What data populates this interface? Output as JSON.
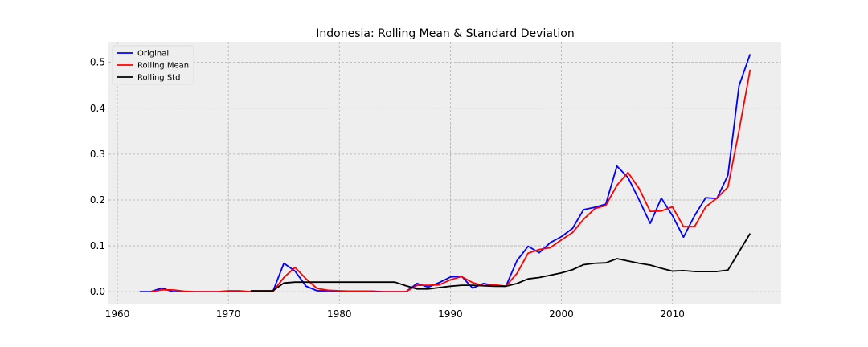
{
  "chart_data": {
    "type": "line",
    "title": "Indonesia: Rolling Mean & Standard Deviation",
    "xlabel": "",
    "ylabel": "",
    "xlim": [
      1959.2,
      2019.8
    ],
    "ylim": [
      -0.026,
      0.545
    ],
    "xticks": [
      1960,
      1970,
      1980,
      1990,
      2000,
      2010
    ],
    "yticks": [
      0.0,
      0.1,
      0.2,
      0.3,
      0.4,
      0.5
    ],
    "grid": true,
    "legend_position": "top-left",
    "series": [
      {
        "name": "Original",
        "color": "#0000ff",
        "x": [
          1962,
          1963,
          1964,
          1965,
          1966,
          1967,
          1968,
          1969,
          1970,
          1971,
          1972,
          1973,
          1974,
          1975,
          1976,
          1977,
          1978,
          1979,
          1980,
          1981,
          1982,
          1983,
          1984,
          1985,
          1986,
          1987,
          1988,
          1989,
          1990,
          1991,
          1992,
          1993,
          1994,
          1995,
          1996,
          1997,
          1998,
          1999,
          2000,
          2001,
          2002,
          2003,
          2004,
          2005,
          2006,
          2007,
          2008,
          2009,
          2010,
          2011,
          2012,
          2013,
          2014,
          2015,
          2016,
          2017
        ],
        "y": [
          0.0,
          0.0,
          0.008,
          0.0,
          0.0,
          0.0,
          0.0,
          0.0,
          0.0,
          0.0,
          0.0,
          0.0,
          0.0,
          0.062,
          0.045,
          0.012,
          0.002,
          0.002,
          0.001,
          0.001,
          0.001,
          0.001,
          0.0,
          0.0,
          0.0,
          0.018,
          0.01,
          0.02,
          0.032,
          0.034,
          0.008,
          0.018,
          0.013,
          0.012,
          0.068,
          0.099,
          0.085,
          0.107,
          0.12,
          0.138,
          0.179,
          0.184,
          0.191,
          0.274,
          0.249,
          0.2,
          0.149,
          0.204,
          0.166,
          0.119,
          0.166,
          0.205,
          0.203,
          0.254,
          0.449,
          0.518
        ]
      },
      {
        "name": "Rolling Mean",
        "color": "#ff0000",
        "x": [
          1963,
          1964,
          1965,
          1966,
          1967,
          1968,
          1969,
          1970,
          1971,
          1972,
          1973,
          1974,
          1975,
          1976,
          1977,
          1978,
          1979,
          1980,
          1981,
          1982,
          1983,
          1984,
          1985,
          1986,
          1987,
          1988,
          1989,
          1990,
          1991,
          1992,
          1993,
          1994,
          1995,
          1996,
          1997,
          1998,
          1999,
          2000,
          2001,
          2002,
          2003,
          2004,
          2005,
          2006,
          2007,
          2008,
          2009,
          2010,
          2011,
          2012,
          2013,
          2014,
          2015,
          2016,
          2017
        ],
        "y": [
          0.0,
          0.004,
          0.004,
          0.001,
          0.0,
          0.0,
          0.0,
          0.002,
          0.002,
          0.0,
          0.0,
          0.0,
          0.031,
          0.053,
          0.028,
          0.007,
          0.003,
          0.002,
          0.001,
          0.001,
          0.0,
          0.0,
          0.0,
          0.0,
          0.014,
          0.014,
          0.015,
          0.026,
          0.033,
          0.02,
          0.013,
          0.015,
          0.012,
          0.04,
          0.084,
          0.092,
          0.096,
          0.113,
          0.129,
          0.158,
          0.181,
          0.188,
          0.232,
          0.26,
          0.225,
          0.175,
          0.176,
          0.185,
          0.142,
          0.142,
          0.185,
          0.204,
          0.228,
          0.351,
          0.484
        ]
      },
      {
        "name": "Rolling Std",
        "color": "#000000",
        "x": [
          1972,
          1973,
          1974,
          1975,
          1976,
          1977,
          1978,
          1979,
          1980,
          1981,
          1982,
          1983,
          1984,
          1985,
          1986,
          1987,
          1988,
          1989,
          1990,
          1991,
          1992,
          1993,
          1994,
          1995,
          1996,
          1997,
          1998,
          1999,
          2000,
          2001,
          2002,
          2003,
          2004,
          2005,
          2006,
          2007,
          2008,
          2009,
          2010,
          2011,
          2012,
          2013,
          2014,
          2015,
          2016,
          2017
        ],
        "y": [
          0.002,
          0.002,
          0.002,
          0.019,
          0.021,
          0.021,
          0.021,
          0.021,
          0.021,
          0.021,
          0.021,
          0.021,
          0.021,
          0.021,
          0.013,
          0.006,
          0.006,
          0.009,
          0.012,
          0.014,
          0.014,
          0.013,
          0.012,
          0.012,
          0.018,
          0.028,
          0.031,
          0.036,
          0.041,
          0.048,
          0.059,
          0.062,
          0.063,
          0.072,
          0.067,
          0.062,
          0.058,
          0.051,
          0.045,
          0.046,
          0.044,
          0.044,
          0.044,
          0.047,
          0.087,
          0.127
        ]
      }
    ]
  }
}
